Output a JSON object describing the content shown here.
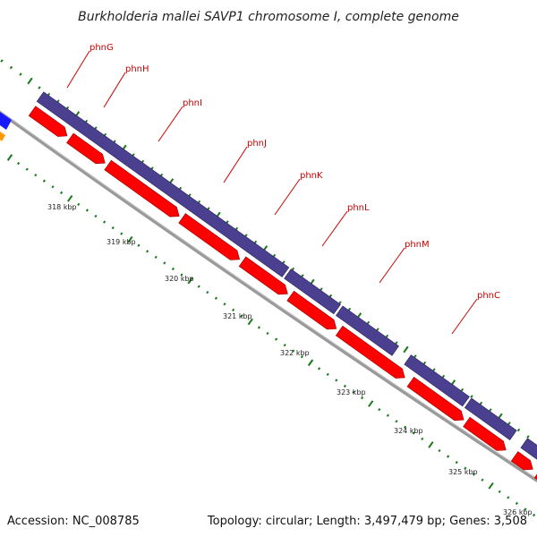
{
  "title": "Burkholderia mallei SAVP1 chromosome I, complete genome",
  "footer": {
    "accession": "Accession: NC_008785",
    "summary": "Topology: circular; Length: 3,497,479 bp; Genes: 3,508"
  },
  "genes": [
    {
      "label": "phnG"
    },
    {
      "label": "phnH"
    },
    {
      "label": "phnI"
    },
    {
      "label": "phnJ"
    },
    {
      "label": "phnK"
    },
    {
      "label": "phnL"
    },
    {
      "label": "phnM"
    },
    {
      "label": "phnC"
    }
  ],
  "ticks": [
    {
      "label": "318 kbp"
    },
    {
      "label": "319 kbp"
    },
    {
      "label": "320 kbp"
    },
    {
      "label": "321 kbp"
    },
    {
      "label": "322 kbp"
    },
    {
      "label": "323 kbp"
    },
    {
      "label": "324 kbp"
    },
    {
      "label": "325 kbp"
    },
    {
      "label": "326 kbp"
    }
  ],
  "colors": {
    "cds_forward": "#4b3f8f",
    "cds_reverse": "#ff0000",
    "backbone": "#808080",
    "tick": "#1a7a1a",
    "label": "#cc0000",
    "neighbor_blue": "#1a1aff",
    "neighbor_orange": "#ff9900"
  }
}
